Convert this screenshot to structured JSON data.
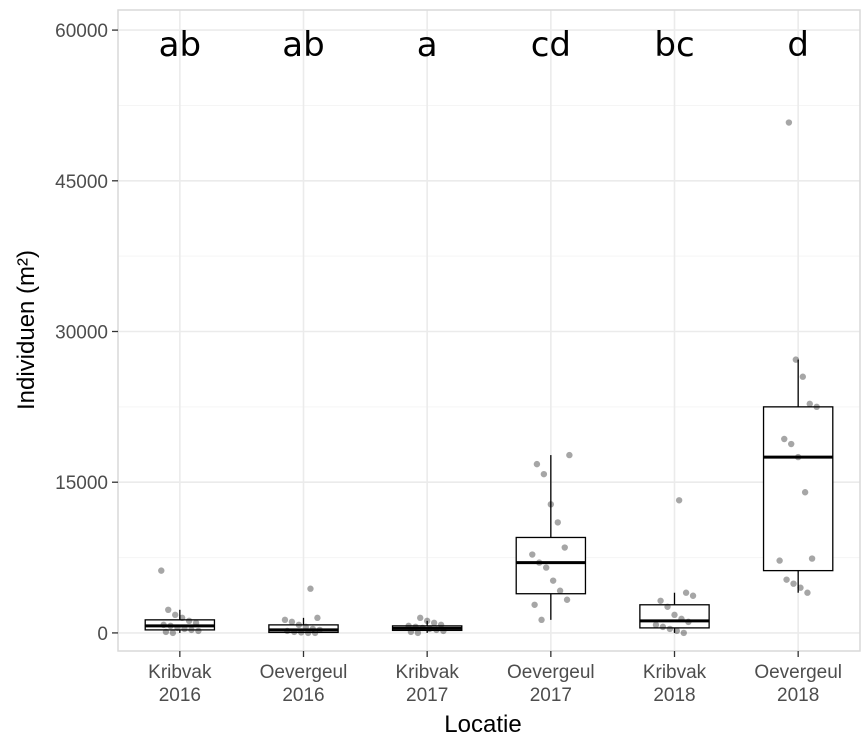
{
  "chart_data": {
    "type": "boxplot",
    "title": "",
    "xlabel": "Locatie",
    "ylabel": "Individuen (m²)",
    "ylim": [
      -1800,
      62000
    ],
    "y_ticks": [
      0,
      15000,
      30000,
      45000,
      60000
    ],
    "y_tick_labels": [
      "0",
      "15000",
      "30000",
      "45000",
      "60000"
    ],
    "grid": true,
    "categories": [
      {
        "line1": "Kribvak",
        "line2": "2016"
      },
      {
        "line1": "Oevergeul",
        "line2": "2016"
      },
      {
        "line1": "Kribvak",
        "line2": "2017"
      },
      {
        "line1": "Oevergeul",
        "line2": "2017"
      },
      {
        "line1": "Kribvak",
        "line2": "2018"
      },
      {
        "line1": "Oevergeul",
        "line2": "2018"
      }
    ],
    "significance_letters": [
      "ab",
      "ab",
      "a",
      "cd",
      "bc",
      "d"
    ],
    "boxes": [
      {
        "q1": 300,
        "median": 700,
        "q3": 1300,
        "whisker_low": 0,
        "whisker_high": 2300
      },
      {
        "q1": 50,
        "median": 300,
        "q3": 800,
        "whisker_low": 0,
        "whisker_high": 1500
      },
      {
        "q1": 250,
        "median": 450,
        "q3": 700,
        "whisker_low": 0,
        "whisker_high": 1200
      },
      {
        "q1": 3900,
        "median": 7000,
        "q3": 9500,
        "whisker_low": 1300,
        "whisker_high": 17700
      },
      {
        "q1": 500,
        "median": 1200,
        "q3": 2800,
        "whisker_low": 0,
        "whisker_high": 4000
      },
      {
        "q1": 6200,
        "median": 17500,
        "q3": 22500,
        "whisker_low": 4000,
        "whisker_high": 27200
      }
    ],
    "points": [
      [
        6200,
        2300,
        1800,
        1500,
        1200,
        1000,
        800,
        700,
        500,
        400,
        300,
        200,
        100,
        0
      ],
      [
        4400,
        1500,
        1300,
        1100,
        800,
        600,
        400,
        300,
        200,
        100,
        50,
        0,
        0
      ],
      [
        1500,
        1200,
        1000,
        800,
        700,
        600,
        500,
        400,
        300,
        200,
        100,
        0
      ],
      [
        17700,
        16800,
        15800,
        12800,
        11000,
        8500,
        7800,
        7000,
        6500,
        5200,
        4200,
        3300,
        2800,
        1300
      ],
      [
        13200,
        4000,
        3700,
        3200,
        2600,
        1800,
        1400,
        1100,
        800,
        600,
        400,
        200,
        0
      ],
      [
        50800,
        27200,
        25500,
        22800,
        22500,
        19300,
        18800,
        17500,
        14000,
        7400,
        7200,
        5300,
        4900,
        4500,
        4000
      ]
    ],
    "colors": {
      "panel_border": "#d9d9d9",
      "grid_major": "#ebebeb",
      "grid_minor": "#f5f5f5",
      "box_stroke": "#000000",
      "point_fill": "#000000",
      "tick_text": "#4d4d4d"
    }
  }
}
